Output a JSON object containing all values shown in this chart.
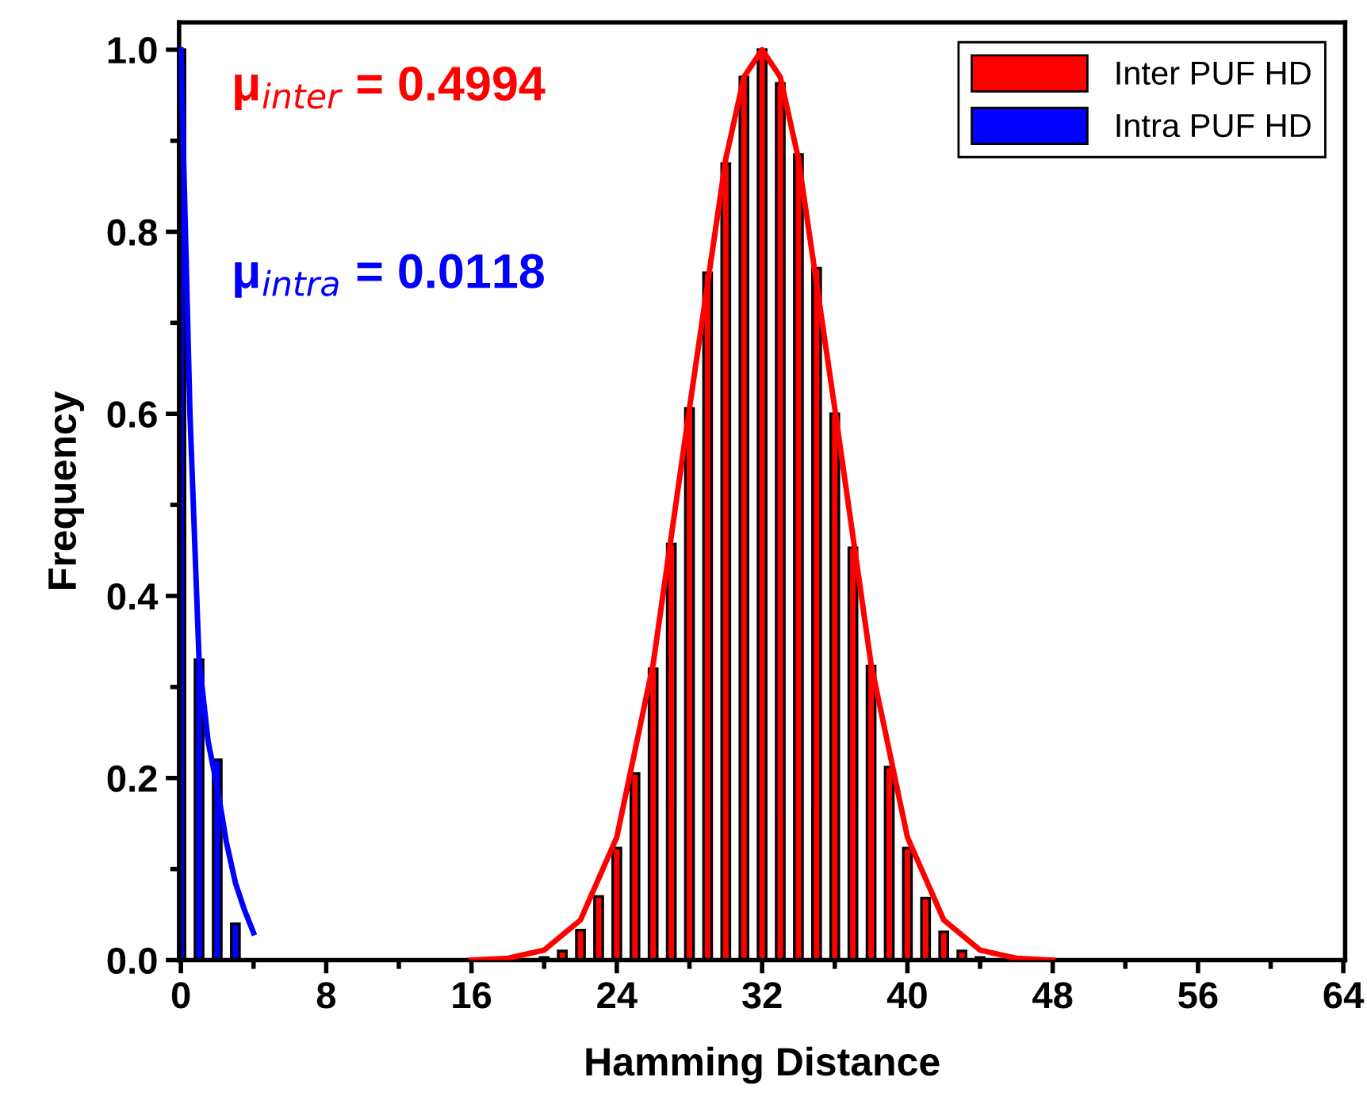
{
  "chart_data": {
    "type": "bar",
    "xlabel": "Hamming Distance",
    "ylabel": "Frequency",
    "xlim": [
      -0.1,
      64.1
    ],
    "xticks": [
      0,
      8,
      16,
      24,
      32,
      40,
      48,
      56,
      64
    ],
    "ylim": [
      0,
      1.03
    ],
    "yticks": [
      {
        "value": 0,
        "label": "0.0"
      },
      {
        "value": 0.2,
        "label": "0.2"
      },
      {
        "value": 0.4,
        "label": "0.4"
      },
      {
        "value": 0.6,
        "label": "0.6"
      },
      {
        "value": 0.8,
        "label": "0.8"
      },
      {
        "value": 1,
        "label": "1.0"
      }
    ],
    "grid": false,
    "legend": "top right",
    "annotations": [
      "μ$_{inter}$ = 0.4994",
      "μ$_{intra}$ = 0.0118"
    ],
    "series": [
      {
        "name": "Inter PUF HD",
        "color": "#ff0000",
        "x": [
          20,
          21,
          22,
          23,
          24,
          25,
          26,
          27,
          28,
          29,
          30,
          31,
          32,
          33,
          34,
          35,
          36,
          37,
          38,
          39,
          40,
          41,
          42,
          43,
          44
        ],
        "values": [
          0.003,
          0.01,
          0.033,
          0.07,
          0.123,
          0.205,
          0.32,
          0.457,
          0.606,
          0.755,
          0.875,
          0.97,
          1.0,
          0.963,
          0.885,
          0.76,
          0.6,
          0.453,
          0.323,
          0.212,
          0.123,
          0.068,
          0.031,
          0.01,
          0.003
        ]
      },
      {
        "name": "Intra PUF HD",
        "color": "#0000ff",
        "x": [
          0,
          1,
          2,
          3
        ],
        "values": [
          1.0,
          0.33,
          0.22,
          0.04
        ]
      },
      {
        "type": "line",
        "color": "#ff0000",
        "x": [
          16,
          18,
          20,
          22,
          24,
          26,
          28,
          30,
          31,
          32,
          33,
          34,
          36,
          38,
          40,
          42,
          44,
          46,
          48
        ],
        "values": [
          0,
          0.002,
          0.011,
          0.044,
          0.135,
          0.325,
          0.606,
          0.88,
          0.97,
          1.0,
          0.97,
          0.88,
          0.606,
          0.325,
          0.135,
          0.044,
          0.011,
          0.002,
          0
        ]
      },
      {
        "type": "line",
        "color": "#0000ff",
        "x": [
          0,
          0.5,
          1,
          1.5,
          2,
          2.5,
          3,
          3.5,
          4
        ],
        "values": [
          1.0,
          0.6,
          0.33,
          0.24,
          0.19,
          0.13,
          0.085,
          0.055,
          0.03
        ]
      }
    ]
  }
}
